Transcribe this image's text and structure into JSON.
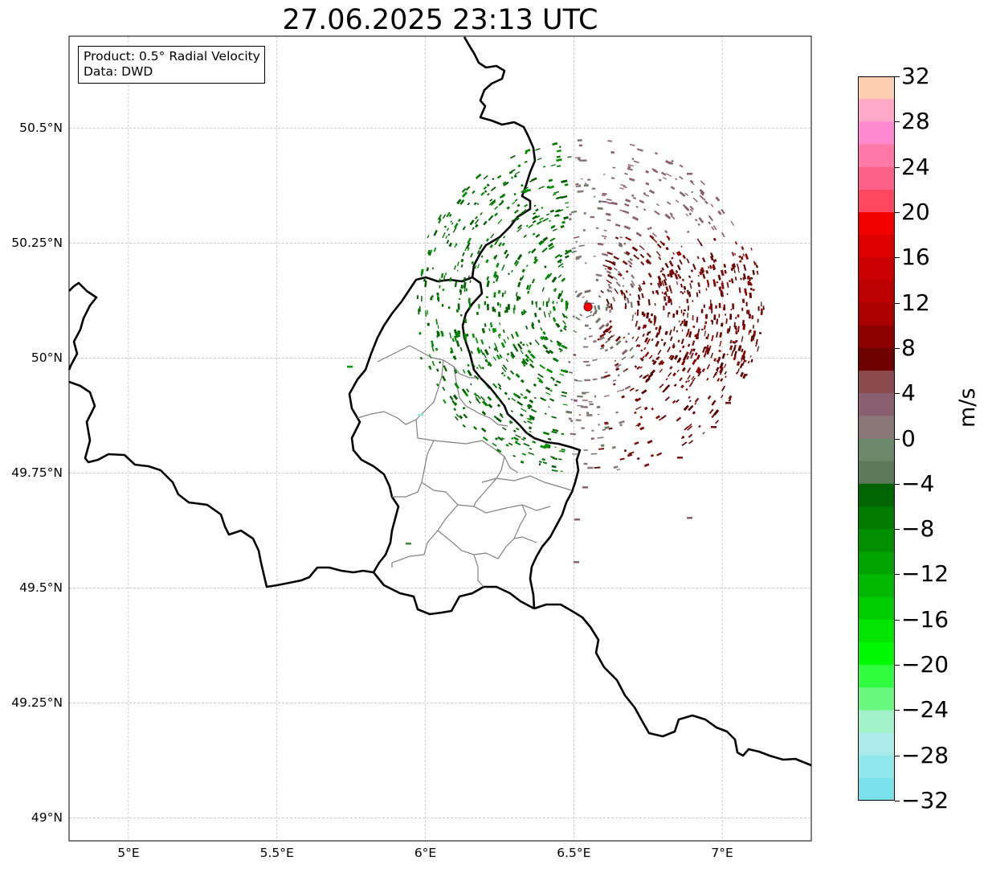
{
  "title": "27.06.2025 23:13 UTC",
  "info": {
    "product": "Product: 0.5° Radial Velocity",
    "data": "Data: DWD"
  },
  "lat_ticks": [
    {
      "value": 50.5,
      "label": "50.5°N"
    },
    {
      "value": 50.25,
      "label": "50.25°N"
    },
    {
      "value": 50.0,
      "label": "50°N"
    },
    {
      "value": 49.75,
      "label": "49.75°N"
    },
    {
      "value": 49.5,
      "label": "49.5°N"
    },
    {
      "value": 49.25,
      "label": "49.25°N"
    },
    {
      "value": 49.0,
      "label": "49°N"
    }
  ],
  "lon_ticks": [
    {
      "value": 5.0,
      "label": "5°E"
    },
    {
      "value": 5.5,
      "label": "5.5°E"
    },
    {
      "value": 6.0,
      "label": "6°E"
    },
    {
      "value": 6.5,
      "label": "6.5°E"
    },
    {
      "value": 7.0,
      "label": "7°E"
    }
  ],
  "extent": {
    "lon": [
      4.8,
      7.3
    ],
    "lat": [
      48.95,
      50.7
    ]
  },
  "radar_site": {
    "lon": 6.548,
    "lat": 50.111
  },
  "colorbar": {
    "unit": "m/s",
    "range": [
      -32,
      32
    ],
    "ticks": [
      {
        "value": 32,
        "label": "32"
      },
      {
        "value": 28,
        "label": "28"
      },
      {
        "value": 24,
        "label": "24"
      },
      {
        "value": 20,
        "label": "20"
      },
      {
        "value": 16,
        "label": "16"
      },
      {
        "value": 12,
        "label": "12"
      },
      {
        "value": 8,
        "label": "8"
      },
      {
        "value": 4,
        "label": "4"
      },
      {
        "value": 0,
        "label": "0"
      },
      {
        "value": -4,
        "label": "−4"
      },
      {
        "value": -8,
        "label": "−8"
      },
      {
        "value": -12,
        "label": "−12"
      },
      {
        "value": -16,
        "label": "−16"
      },
      {
        "value": -20,
        "label": "−20"
      },
      {
        "value": -24,
        "label": "−24"
      },
      {
        "value": -28,
        "label": "−28"
      },
      {
        "value": -32,
        "label": "−32"
      }
    ],
    "colors_top_to_bottom": [
      "#ffcdb0",
      "#ffa8c8",
      "#ff88d0",
      "#ff78a8",
      "#ff6088",
      "#ff4860",
      "#f00000",
      "#dd0000",
      "#cc0000",
      "#bb0000",
      "#aa0000",
      "#8c0000",
      "#6e0000",
      "#8a4a50",
      "#8a6070",
      "#8a7878",
      "#6a8a6a",
      "#5a7a55",
      "#006400",
      "#007a00",
      "#008f00",
      "#00a200",
      "#00b800",
      "#00cc00",
      "#00e400",
      "#00f800",
      "#30ff40",
      "#68f880",
      "#a0f0c8",
      "#aaeaea",
      "#90e8ec",
      "#78e0e8"
    ]
  },
  "colors": {
    "border": "#000000",
    "admin": "#808080",
    "grid": "#b0b0b0",
    "radar_site": "#ff0000"
  }
}
